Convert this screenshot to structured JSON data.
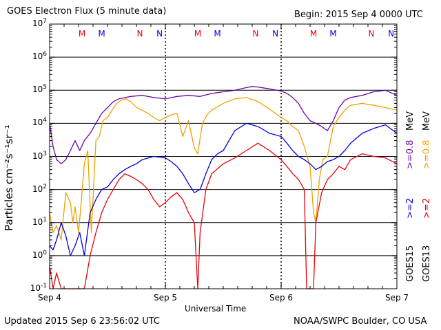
{
  "header": {
    "title": "GOES Electron Flux (5 minute data)",
    "begin": "Begin: 2015 Sep 4 0000 UTC"
  },
  "footer": {
    "updated": "Updated 2015 Sep  6 23:56:02 UTC",
    "credit": "NOAA/SWPC Boulder, CO USA"
  },
  "chart_data": {
    "type": "line",
    "title": "GOES Electron Flux (5 minute data)",
    "xlabel": "Universal Time",
    "ylabel": "Particles cm⁻²s⁻¹sr⁻¹",
    "yscale": "log",
    "ylim": [
      0.1,
      10000000
    ],
    "xlim_days": [
      0,
      3
    ],
    "x_tick_labels": [
      "Sep 4",
      "Sep 5",
      "Sep 6",
      "Sep 7"
    ],
    "y_tick_labels": [
      {
        "base": "10",
        "exp": "7"
      },
      {
        "base": "10",
        "exp": "6"
      },
      {
        "base": "10",
        "exp": "5"
      },
      {
        "base": "10",
        "exp": "4"
      },
      {
        "base": "10",
        "exp": "3"
      },
      {
        "base": "10",
        "exp": "2"
      },
      {
        "base": "10",
        "exp": "1"
      },
      {
        "base": "10",
        "exp": "0"
      },
      {
        "base": "10",
        "exp": "-1"
      }
    ],
    "alert_threshold": 1000,
    "grid": true,
    "markers": [
      {
        "label": "M",
        "day": 0.28,
        "color": "#e8000b"
      },
      {
        "label": "M",
        "day": 0.45,
        "color": "#0000e0"
      },
      {
        "label": "N",
        "day": 0.78,
        "color": "#e8000b"
      },
      {
        "label": "N",
        "day": 0.95,
        "color": "#0000e0"
      },
      {
        "label": "M",
        "day": 1.28,
        "color": "#e8000b"
      },
      {
        "label": "M",
        "day": 1.45,
        "color": "#0000e0"
      },
      {
        "label": "N",
        "day": 1.78,
        "color": "#e8000b"
      },
      {
        "label": "N",
        "day": 1.95,
        "color": "#0000e0"
      },
      {
        "label": "M",
        "day": 2.28,
        "color": "#e8000b"
      },
      {
        "label": "M",
        "day": 2.45,
        "color": "#0000e0"
      },
      {
        "label": "N",
        "day": 2.78,
        "color": "#e8000b"
      },
      {
        "label": "N",
        "day": 2.95,
        "color": "#0000e0"
      }
    ],
    "legend_right": [
      {
        "text": "GOES15",
        "color": "#000000"
      },
      {
        "text": "GOES13",
        "color": "#000000"
      },
      {
        "text": ">=2",
        "color": "#0000e0"
      },
      {
        "text": ">=2",
        "color": "#e8000b"
      },
      {
        "text": ">=0.8",
        "color": "#6a00a8"
      },
      {
        "text": ">=0.8",
        "color": "#f0a000"
      },
      {
        "text": "MeV",
        "color": "#000000"
      },
      {
        "text": "MeV",
        "color": "#000000"
      }
    ],
    "series": [
      {
        "name": "GOES13 >=0.8 MeV",
        "color": "#f0a000",
        "x": [
          0.0,
          0.03,
          0.06,
          0.1,
          0.14,
          0.18,
          0.2,
          0.22,
          0.25,
          0.28,
          0.3,
          0.33,
          0.36,
          0.4,
          0.43,
          0.46,
          0.5,
          0.54,
          0.58,
          0.62,
          0.66,
          0.7,
          0.75,
          0.8,
          0.85,
          0.9,
          0.95,
          1.0,
          1.05,
          1.1,
          1.15,
          1.2,
          1.25,
          1.28,
          1.32,
          1.36,
          1.4,
          1.5,
          1.6,
          1.7,
          1.8,
          1.88,
          1.95,
          2.0,
          2.05,
          2.1,
          2.15,
          2.2,
          2.25,
          2.28,
          2.3,
          2.33,
          2.36,
          2.4,
          2.45,
          2.5,
          2.55,
          2.6,
          2.7,
          2.8,
          2.9,
          3.0
        ],
        "y": [
          20,
          5,
          8,
          3,
          80,
          40,
          10,
          30,
          5,
          80,
          600,
          1500,
          5,
          3000,
          4000,
          12000,
          15000,
          25000,
          40000,
          50000,
          55000,
          45000,
          30000,
          25000,
          20000,
          15000,
          12000,
          15000,
          18000,
          20000,
          4000,
          12000,
          1800,
          1200,
          10000,
          18000,
          25000,
          40000,
          55000,
          60000,
          45000,
          30000,
          20000,
          15000,
          12000,
          8000,
          6000,
          2000,
          500,
          20,
          10,
          200,
          800,
          1000,
          8000,
          15000,
          25000,
          35000,
          40000,
          35000,
          30000,
          25000
        ]
      },
      {
        "name": "GOES15 >=0.8 MeV",
        "color": "#6a00a8",
        "x": [
          0.0,
          0.03,
          0.06,
          0.1,
          0.14,
          0.18,
          0.22,
          0.26,
          0.3,
          0.35,
          0.4,
          0.45,
          0.5,
          0.55,
          0.6,
          0.7,
          0.8,
          0.9,
          1.0,
          1.1,
          1.2,
          1.3,
          1.4,
          1.5,
          1.6,
          1.7,
          1.75,
          1.8,
          1.9,
          2.0,
          2.05,
          2.1,
          2.15,
          2.2,
          2.25,
          2.3,
          2.35,
          2.4,
          2.45,
          2.5,
          2.55,
          2.6,
          2.7,
          2.8,
          2.9,
          3.0
        ],
        "y": [
          10000,
          2000,
          800,
          600,
          800,
          1500,
          3000,
          1500,
          3000,
          5000,
          10000,
          20000,
          30000,
          45000,
          55000,
          65000,
          70000,
          60000,
          55000,
          65000,
          70000,
          65000,
          80000,
          90000,
          100000,
          120000,
          130000,
          125000,
          110000,
          95000,
          80000,
          60000,
          40000,
          20000,
          12000,
          10000,
          8000,
          6000,
          12000,
          30000,
          50000,
          60000,
          70000,
          90000,
          100000,
          70000
        ]
      },
      {
        "name": "GOES15 >=2 MeV",
        "color": "#0000e0",
        "x": [
          0.0,
          0.03,
          0.06,
          0.1,
          0.14,
          0.18,
          0.22,
          0.26,
          0.3,
          0.35,
          0.4,
          0.45,
          0.5,
          0.55,
          0.6,
          0.65,
          0.7,
          0.75,
          0.8,
          0.9,
          1.0,
          1.05,
          1.1,
          1.15,
          1.2,
          1.25,
          1.3,
          1.35,
          1.4,
          1.45,
          1.5,
          1.55,
          1.6,
          1.7,
          1.8,
          1.9,
          2.0,
          2.05,
          2.1,
          2.15,
          2.2,
          2.25,
          2.3,
          2.35,
          2.4,
          2.45,
          2.5,
          2.55,
          2.6,
          2.7,
          2.8,
          2.9,
          3.0
        ],
        "y": [
          2,
          1.5,
          3,
          10,
          4,
          1,
          2,
          5,
          1,
          20,
          50,
          100,
          120,
          200,
          300,
          400,
          500,
          600,
          800,
          1000,
          900,
          700,
          500,
          300,
          150,
          80,
          100,
          300,
          800,
          1200,
          1500,
          3000,
          6000,
          10000,
          8000,
          5000,
          4000,
          2500,
          1500,
          1000,
          800,
          600,
          400,
          500,
          700,
          800,
          1000,
          1500,
          2500,
          5000,
          7000,
          9000,
          5000
        ]
      },
      {
        "name": "GOES13 >=2 MeV",
        "color": "#e8000b",
        "x": [
          0.0,
          0.03,
          0.06,
          0.1,
          0.14,
          0.18,
          0.22,
          0.26,
          0.3,
          0.35,
          0.4,
          0.45,
          0.5,
          0.55,
          0.6,
          0.65,
          0.7,
          0.75,
          0.8,
          0.85,
          0.9,
          0.95,
          1.0,
          1.05,
          1.1,
          1.15,
          1.2,
          1.22,
          1.25,
          1.28,
          1.3,
          1.35,
          1.4,
          1.5,
          1.6,
          1.7,
          1.8,
          1.9,
          2.0,
          2.05,
          2.1,
          2.15,
          2.2,
          2.22,
          2.25,
          2.28,
          2.3,
          2.35,
          2.4,
          2.45,
          2.5,
          2.55,
          2.6,
          2.7,
          2.8,
          2.9,
          3.0
        ],
        "y": [
          0.5,
          0.1,
          0.3,
          0.1,
          0.1,
          0.1,
          0.1,
          0.1,
          0.1,
          1,
          5,
          20,
          50,
          100,
          200,
          300,
          250,
          200,
          150,
          100,
          50,
          30,
          40,
          60,
          80,
          50,
          20,
          15,
          10,
          0.1,
          5,
          100,
          300,
          600,
          900,
          1500,
          2500,
          1500,
          800,
          500,
          300,
          200,
          100,
          0.1,
          0.1,
          0.1,
          10,
          80,
          200,
          300,
          500,
          400,
          800,
          1200,
          1000,
          900,
          600
        ]
      }
    ]
  }
}
